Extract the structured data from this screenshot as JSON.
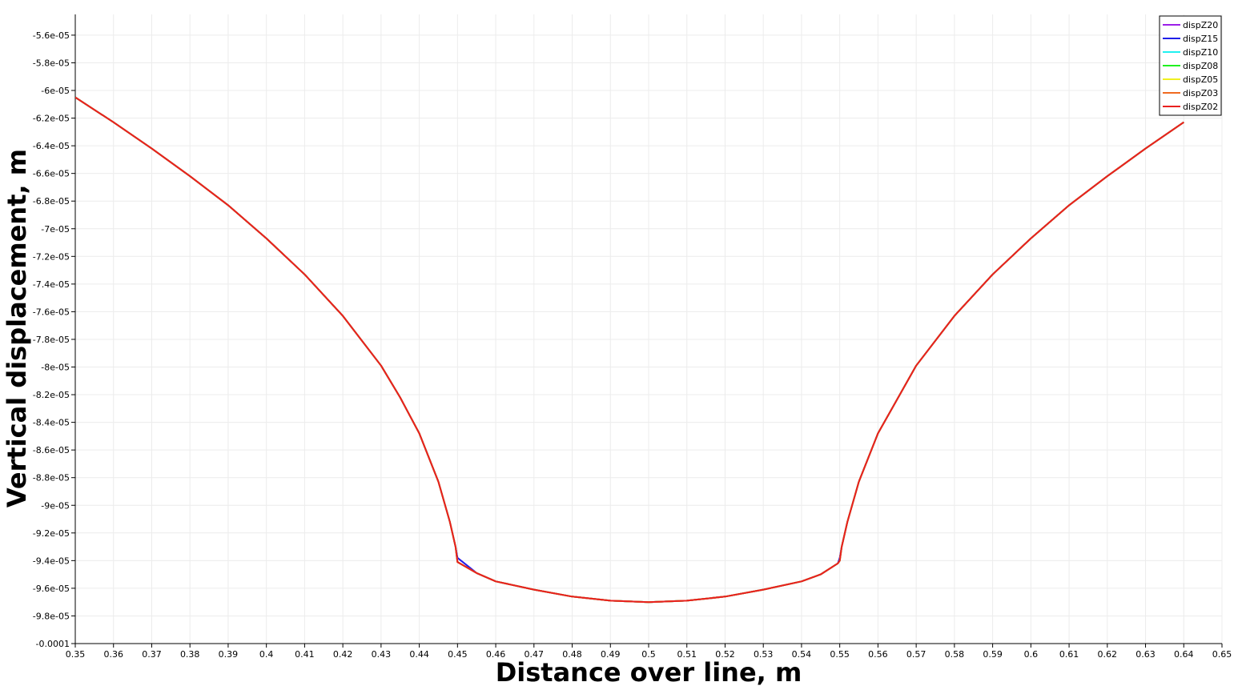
{
  "chart_data": {
    "type": "line",
    "xlabel": "Distance over line, m",
    "ylabel": "Vertical displacement, m",
    "xlim": [
      0.35,
      0.65
    ],
    "ylim": [
      -0.0001,
      -5.45e-05
    ],
    "x_ticks": [
      {
        "value": 0.35,
        "label": "0.35"
      },
      {
        "value": 0.36,
        "label": "0.36"
      },
      {
        "value": 0.37,
        "label": "0.37"
      },
      {
        "value": 0.38,
        "label": "0.38"
      },
      {
        "value": 0.39,
        "label": "0.39"
      },
      {
        "value": 0.4,
        "label": "0.4"
      },
      {
        "value": 0.41,
        "label": "0.41"
      },
      {
        "value": 0.42,
        "label": "0.42"
      },
      {
        "value": 0.43,
        "label": "0.43"
      },
      {
        "value": 0.44,
        "label": "0.44"
      },
      {
        "value": 0.45,
        "label": "0.45"
      },
      {
        "value": 0.46,
        "label": "0.46"
      },
      {
        "value": 0.47,
        "label": "0.47"
      },
      {
        "value": 0.48,
        "label": "0.48"
      },
      {
        "value": 0.49,
        "label": "0.49"
      },
      {
        "value": 0.5,
        "label": "0.5"
      },
      {
        "value": 0.51,
        "label": "0.51"
      },
      {
        "value": 0.52,
        "label": "0.52"
      },
      {
        "value": 0.53,
        "label": "0.53"
      },
      {
        "value": 0.54,
        "label": "0.54"
      },
      {
        "value": 0.55,
        "label": "0.55"
      },
      {
        "value": 0.56,
        "label": "0.56"
      },
      {
        "value": 0.57,
        "label": "0.57"
      },
      {
        "value": 0.58,
        "label": "0.58"
      },
      {
        "value": 0.59,
        "label": "0.59"
      },
      {
        "value": 0.6,
        "label": "0.6"
      },
      {
        "value": 0.61,
        "label": "0.61"
      },
      {
        "value": 0.62,
        "label": "0.62"
      },
      {
        "value": 0.63,
        "label": "0.63"
      },
      {
        "value": 0.64,
        "label": "0.64"
      },
      {
        "value": 0.65,
        "label": "0.65"
      }
    ],
    "y_ticks": [
      {
        "value": -5.6e-05,
        "label": "-5.6e-05"
      },
      {
        "value": -5.8e-05,
        "label": "-5.8e-05"
      },
      {
        "value": -6e-05,
        "label": "-6e-05"
      },
      {
        "value": -6.2e-05,
        "label": "-6.2e-05"
      },
      {
        "value": -6.4e-05,
        "label": "-6.4e-05"
      },
      {
        "value": -6.6e-05,
        "label": "-6.6e-05"
      },
      {
        "value": -6.8e-05,
        "label": "-6.8e-05"
      },
      {
        "value": -7e-05,
        "label": "-7e-05"
      },
      {
        "value": -7.2e-05,
        "label": "-7.2e-05"
      },
      {
        "value": -7.4e-05,
        "label": "-7.4e-05"
      },
      {
        "value": -7.6e-05,
        "label": "-7.6e-05"
      },
      {
        "value": -7.8e-05,
        "label": "-7.8e-05"
      },
      {
        "value": -8e-05,
        "label": "-8e-05"
      },
      {
        "value": -8.2e-05,
        "label": "-8.2e-05"
      },
      {
        "value": -8.4e-05,
        "label": "-8.4e-05"
      },
      {
        "value": -8.6e-05,
        "label": "-8.6e-05"
      },
      {
        "value": -8.8e-05,
        "label": "-8.8e-05"
      },
      {
        "value": -9e-05,
        "label": "-9e-05"
      },
      {
        "value": -9.2e-05,
        "label": "-9.2e-05"
      },
      {
        "value": -9.4e-05,
        "label": "-9.4e-05"
      },
      {
        "value": -9.6e-05,
        "label": "-9.6e-05"
      },
      {
        "value": -9.8e-05,
        "label": "-9.8e-05"
      },
      {
        "value": -0.0001,
        "label": "-0.0001"
      }
    ],
    "grid": true,
    "legend_position": "top-right",
    "x": [
      0.35,
      0.36,
      0.37,
      0.38,
      0.39,
      0.4,
      0.41,
      0.42,
      0.43,
      0.435,
      0.44,
      0.445,
      0.448,
      0.4495,
      0.45,
      0.455,
      0.46,
      0.47,
      0.48,
      0.49,
      0.5,
      0.51,
      0.52,
      0.53,
      0.54,
      0.545,
      0.5495,
      0.55,
      0.5505,
      0.552,
      0.555,
      0.56,
      0.57,
      0.58,
      0.59,
      0.6,
      0.61,
      0.62,
      0.63,
      0.64
    ],
    "series": [
      {
        "name": "dispZ20",
        "color": "#9b1fe8",
        "values": [
          -6.05e-05,
          -6.23e-05,
          -6.42e-05,
          -6.62e-05,
          -6.83e-05,
          -7.07e-05,
          -7.33e-05,
          -7.63e-05,
          -7.99e-05,
          -8.22e-05,
          -8.48e-05,
          -8.83e-05,
          -9.12e-05,
          -9.3e-05,
          -9.38e-05,
          -9.49e-05,
          -9.55e-05,
          -9.61e-05,
          -9.66e-05,
          -9.69e-05,
          -9.7e-05,
          -9.69e-05,
          -9.66e-05,
          -9.61e-05,
          -9.55e-05,
          -9.5e-05,
          -9.42e-05,
          -9.38e-05,
          -9.3e-05,
          -9.12e-05,
          -8.83e-05,
          -8.48e-05,
          -7.99e-05,
          -7.63e-05,
          -7.33e-05,
          -7.07e-05,
          -6.83e-05,
          -6.62e-05,
          -6.42e-05,
          -6.23e-05
        ]
      },
      {
        "name": "dispZ15",
        "color": "#1f1fe8",
        "values": [
          -6.05e-05,
          -6.23e-05,
          -6.42e-05,
          -6.62e-05,
          -6.83e-05,
          -7.07e-05,
          -7.33e-05,
          -7.63e-05,
          -7.99e-05,
          -8.22e-05,
          -8.48e-05,
          -8.83e-05,
          -9.12e-05,
          -9.3e-05,
          -9.38e-05,
          -9.49e-05,
          -9.55e-05,
          -9.61e-05,
          -9.66e-05,
          -9.69e-05,
          -9.7e-05,
          -9.69e-05,
          -9.66e-05,
          -9.61e-05,
          -9.55e-05,
          -9.5e-05,
          -9.42e-05,
          -9.38e-05,
          -9.3e-05,
          -9.12e-05,
          -8.83e-05,
          -8.48e-05,
          -7.99e-05,
          -7.63e-05,
          -7.33e-05,
          -7.07e-05,
          -6.83e-05,
          -6.62e-05,
          -6.42e-05,
          -6.23e-05
        ]
      },
      {
        "name": "dispZ10",
        "color": "#20f0f0",
        "values": [
          -6.05e-05,
          -6.23e-05,
          -6.42e-05,
          -6.62e-05,
          -6.83e-05,
          -7.07e-05,
          -7.33e-05,
          -7.63e-05,
          -7.99e-05,
          -8.22e-05,
          -8.48e-05,
          -8.83e-05,
          -9.12e-05,
          -9.3e-05,
          -9.41e-05,
          -9.49e-05,
          -9.55e-05,
          -9.61e-05,
          -9.66e-05,
          -9.69e-05,
          -9.7e-05,
          -9.69e-05,
          -9.66e-05,
          -9.61e-05,
          -9.55e-05,
          -9.5e-05,
          -9.42e-05,
          -9.4e-05,
          -9.3e-05,
          -9.12e-05,
          -8.83e-05,
          -8.48e-05,
          -7.99e-05,
          -7.63e-05,
          -7.33e-05,
          -7.07e-05,
          -6.83e-05,
          -6.62e-05,
          -6.42e-05,
          -6.23e-05
        ]
      },
      {
        "name": "dispZ08",
        "color": "#20f020",
        "values": [
          -6.05e-05,
          -6.23e-05,
          -6.42e-05,
          -6.62e-05,
          -6.83e-05,
          -7.07e-05,
          -7.33e-05,
          -7.63e-05,
          -7.99e-05,
          -8.22e-05,
          -8.48e-05,
          -8.83e-05,
          -9.12e-05,
          -9.3e-05,
          -9.41e-05,
          -9.49e-05,
          -9.55e-05,
          -9.61e-05,
          -9.66e-05,
          -9.69e-05,
          -9.7e-05,
          -9.69e-05,
          -9.66e-05,
          -9.61e-05,
          -9.55e-05,
          -9.5e-05,
          -9.42e-05,
          -9.4e-05,
          -9.3e-05,
          -9.12e-05,
          -8.83e-05,
          -8.48e-05,
          -7.99e-05,
          -7.63e-05,
          -7.33e-05,
          -7.07e-05,
          -6.83e-05,
          -6.62e-05,
          -6.42e-05,
          -6.23e-05
        ]
      },
      {
        "name": "dispZ05",
        "color": "#f0f020",
        "values": [
          -6.05e-05,
          -6.23e-05,
          -6.42e-05,
          -6.62e-05,
          -6.83e-05,
          -7.07e-05,
          -7.33e-05,
          -7.63e-05,
          -7.99e-05,
          -8.22e-05,
          -8.48e-05,
          -8.83e-05,
          -9.12e-05,
          -9.3e-05,
          -9.41e-05,
          -9.49e-05,
          -9.55e-05,
          -9.61e-05,
          -9.66e-05,
          -9.69e-05,
          -9.7e-05,
          -9.69e-05,
          -9.66e-05,
          -9.61e-05,
          -9.55e-05,
          -9.5e-05,
          -9.42e-05,
          -9.4e-05,
          -9.3e-05,
          -9.12e-05,
          -8.83e-05,
          -8.48e-05,
          -7.99e-05,
          -7.63e-05,
          -7.33e-05,
          -7.07e-05,
          -6.83e-05,
          -6.62e-05,
          -6.42e-05,
          -6.23e-05
        ]
      },
      {
        "name": "dispZ03",
        "color": "#f06a20",
        "values": [
          -6.05e-05,
          -6.23e-05,
          -6.42e-05,
          -6.62e-05,
          -6.83e-05,
          -7.07e-05,
          -7.33e-05,
          -7.63e-05,
          -7.99e-05,
          -8.22e-05,
          -8.48e-05,
          -8.83e-05,
          -9.12e-05,
          -9.3e-05,
          -9.41e-05,
          -9.49e-05,
          -9.55e-05,
          -9.61e-05,
          -9.66e-05,
          -9.69e-05,
          -9.7e-05,
          -9.69e-05,
          -9.66e-05,
          -9.61e-05,
          -9.55e-05,
          -9.5e-05,
          -9.42e-05,
          -9.4e-05,
          -9.3e-05,
          -9.12e-05,
          -8.83e-05,
          -8.48e-05,
          -7.99e-05,
          -7.63e-05,
          -7.33e-05,
          -7.07e-05,
          -6.83e-05,
          -6.62e-05,
          -6.42e-05,
          -6.23e-05
        ]
      },
      {
        "name": "dispZ02",
        "color": "#e8201f",
        "values": [
          -6.05e-05,
          -6.23e-05,
          -6.42e-05,
          -6.62e-05,
          -6.83e-05,
          -7.07e-05,
          -7.33e-05,
          -7.63e-05,
          -7.99e-05,
          -8.22e-05,
          -8.48e-05,
          -8.83e-05,
          -9.12e-05,
          -9.3e-05,
          -9.41e-05,
          -9.49e-05,
          -9.55e-05,
          -9.61e-05,
          -9.66e-05,
          -9.69e-05,
          -9.7e-05,
          -9.69e-05,
          -9.66e-05,
          -9.61e-05,
          -9.55e-05,
          -9.5e-05,
          -9.42e-05,
          -9.4e-05,
          -9.3e-05,
          -9.12e-05,
          -8.83e-05,
          -8.48e-05,
          -7.99e-05,
          -7.63e-05,
          -7.33e-05,
          -7.07e-05,
          -6.83e-05,
          -6.62e-05,
          -6.42e-05,
          -6.23e-05
        ]
      }
    ]
  }
}
